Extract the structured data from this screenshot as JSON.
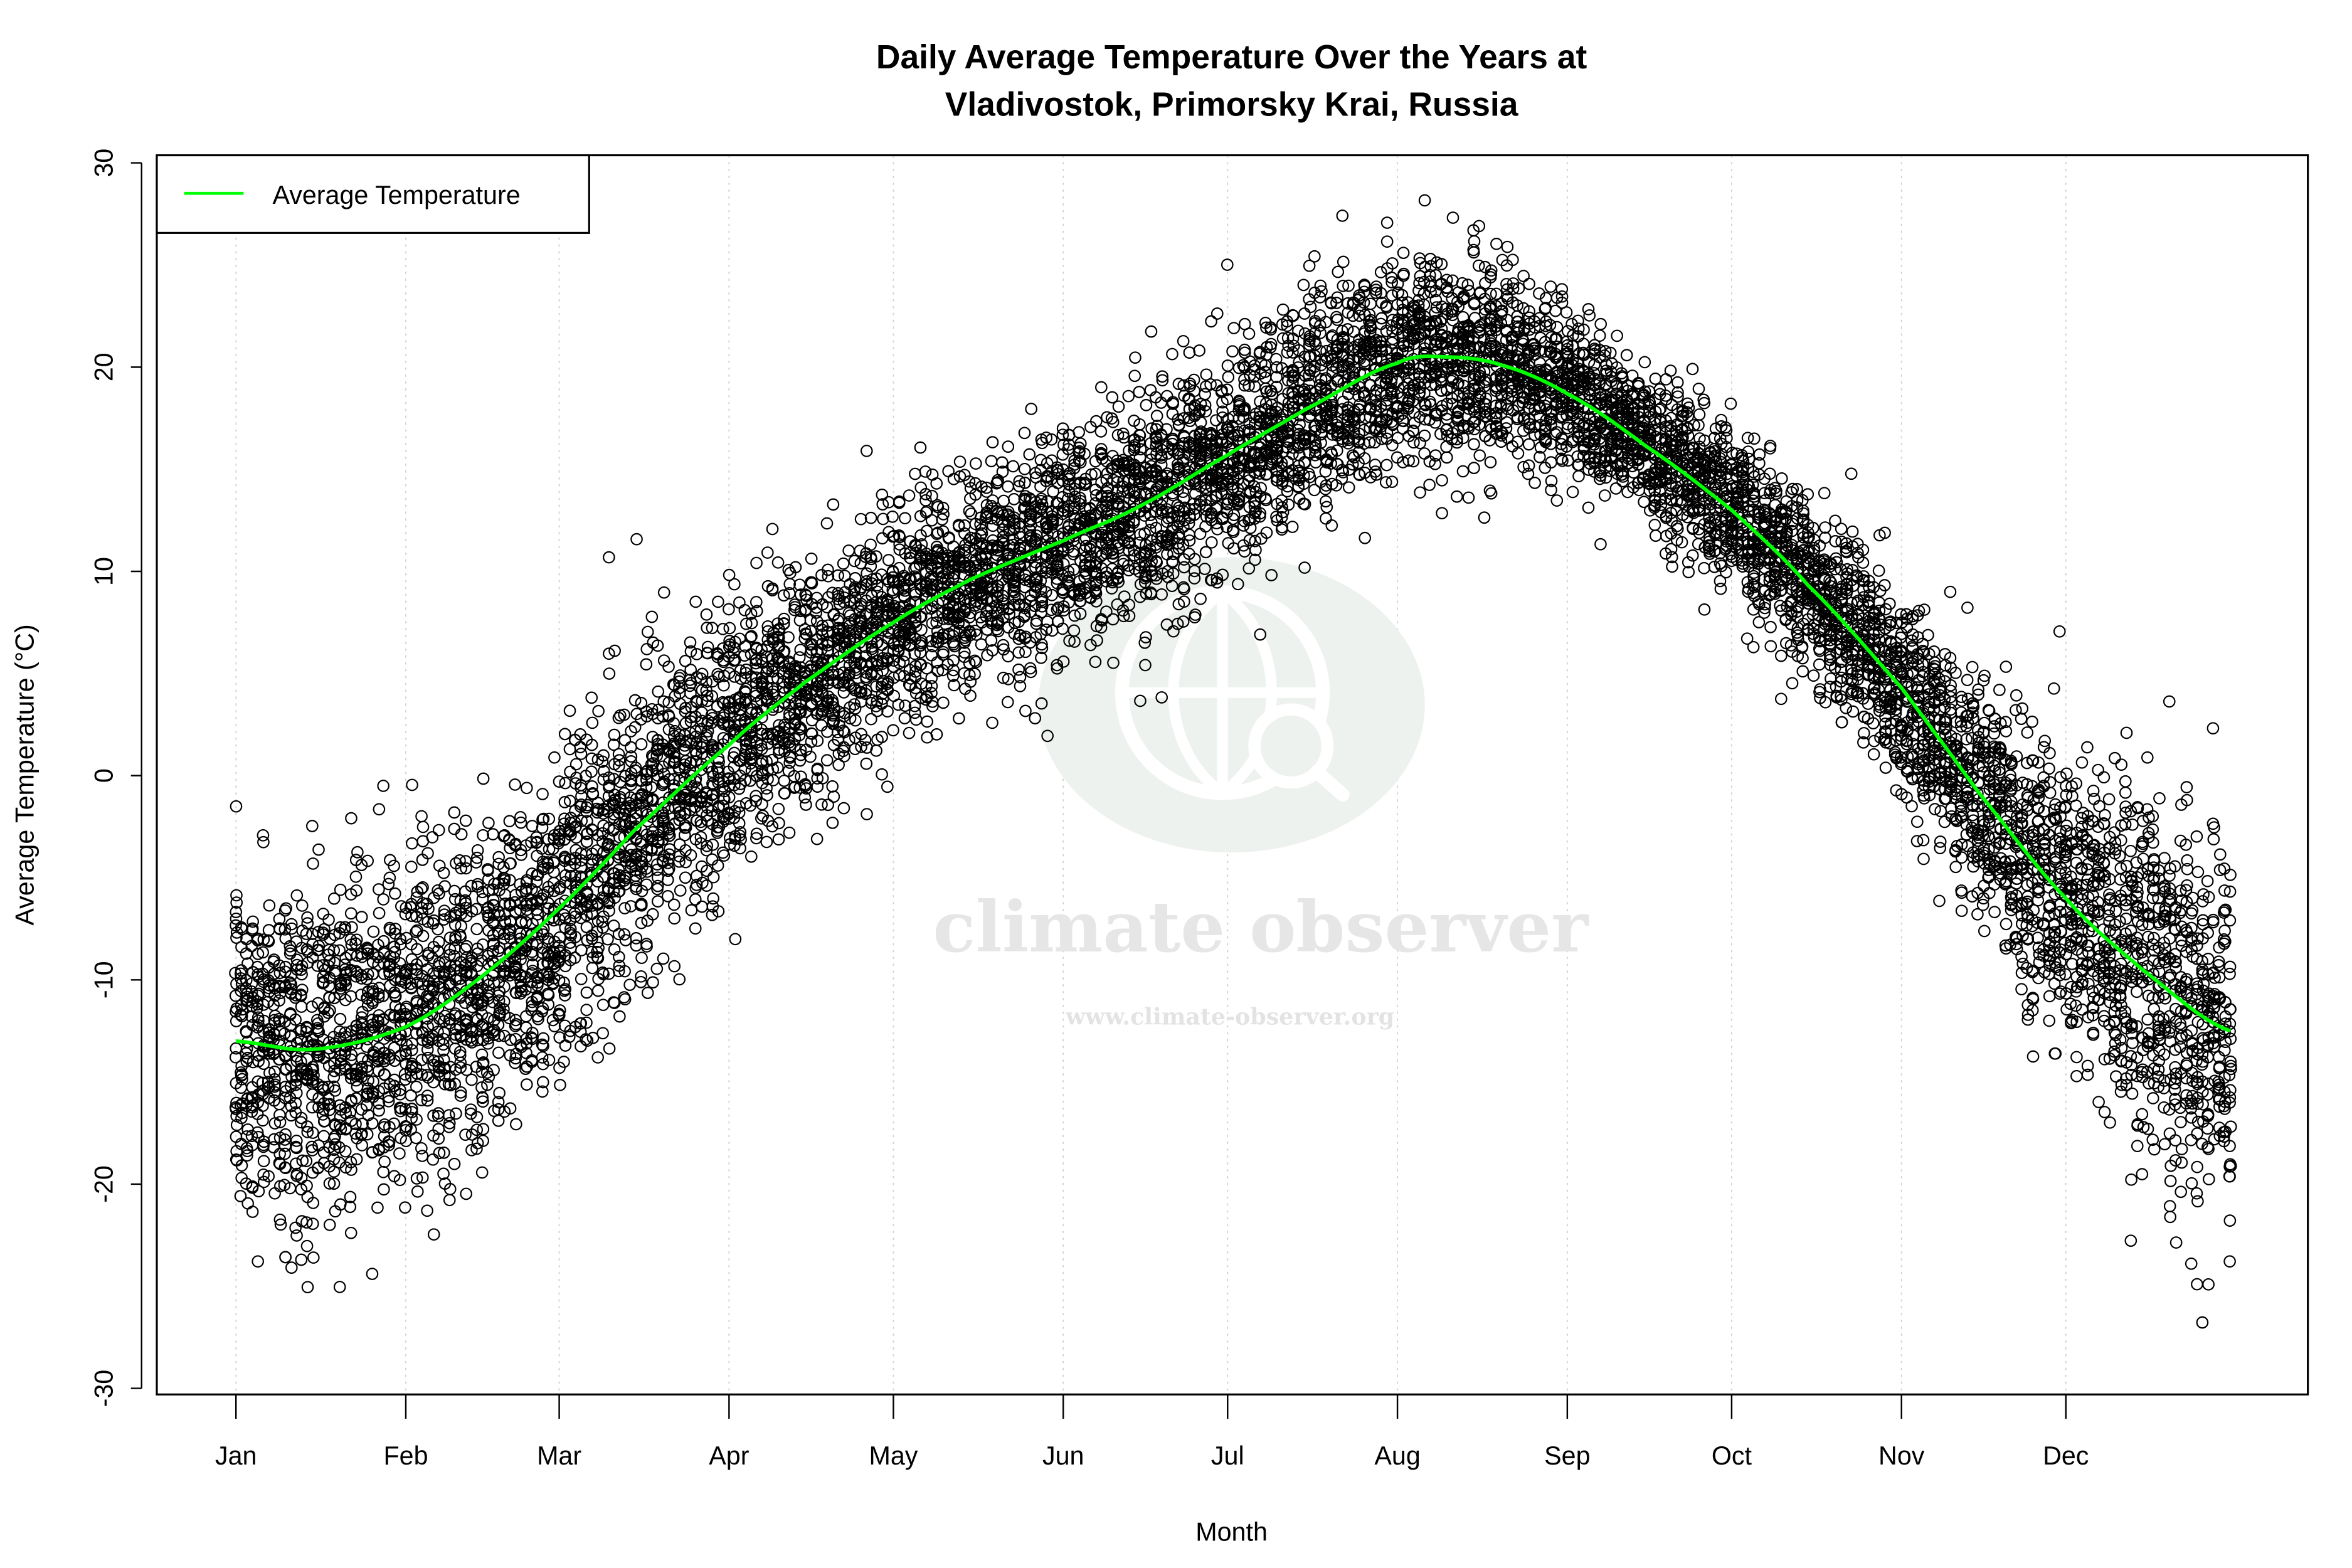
{
  "chart_data": {
    "type": "scatter",
    "title": "Daily Average Temperature Over the Years at\nVladivostok, Primorsky Krai, Russia",
    "title_lines": [
      "Daily Average Temperature Over the Years at",
      "Vladivostok, Primorsky Krai, Russia"
    ],
    "xlabel": "Month",
    "ylabel": "Average Temperature (°C)",
    "x_tick_labels": [
      "Jan",
      "Feb",
      "Mar",
      "Apr",
      "May",
      "Jun",
      "Jul",
      "Aug",
      "Sep",
      "Oct",
      "Nov",
      "Dec"
    ],
    "x_tick_dates": [
      "01-01",
      "02-01",
      "03-01",
      "04-01",
      "05-01",
      "06-01",
      "07-01",
      "08-01",
      "09-01",
      "10-01",
      "11-01",
      "12-01"
    ],
    "y_ticks": [
      -30,
      -20,
      -10,
      0,
      10,
      20,
      30
    ],
    "ylim": [
      -30,
      30
    ],
    "grid": "vertical dotted at month ticks",
    "legend": {
      "position": "top-left",
      "entries": [
        {
          "label": "Average Temperature",
          "color": "#00ff00"
        }
      ]
    },
    "series": [
      {
        "name": "Average Temperature",
        "type": "line",
        "color": "#00ff00",
        "points": [
          {
            "date": "01-01",
            "value": -13.0
          },
          {
            "date": "01-15",
            "value": -13.4
          },
          {
            "date": "02-01",
            "value": -12.3
          },
          {
            "date": "02-15",
            "value": -9.8
          },
          {
            "date": "03-01",
            "value": -6.5
          },
          {
            "date": "03-15",
            "value": -2.6
          },
          {
            "date": "04-01",
            "value": 1.5
          },
          {
            "date": "04-15",
            "value": 4.6
          },
          {
            "date": "05-01",
            "value": 7.5
          },
          {
            "date": "05-15",
            "value": 9.6
          },
          {
            "date": "06-01",
            "value": 11.5
          },
          {
            "date": "06-15",
            "value": 13.2
          },
          {
            "date": "07-01",
            "value": 15.7
          },
          {
            "date": "07-15",
            "value": 17.9
          },
          {
            "date": "08-01",
            "value": 20.2
          },
          {
            "date": "08-10",
            "value": 20.5
          },
          {
            "date": "08-20",
            "value": 20.1
          },
          {
            "date": "09-01",
            "value": 18.7
          },
          {
            "date": "09-15",
            "value": 16.2
          },
          {
            "date": "10-01",
            "value": 13.0
          },
          {
            "date": "10-15",
            "value": 9.3
          },
          {
            "date": "11-01",
            "value": 4.3
          },
          {
            "date": "11-15",
            "value": -0.8
          },
          {
            "date": "12-01",
            "value": -6.0
          },
          {
            "date": "12-15",
            "value": -9.5
          },
          {
            "date": "12-31",
            "value": -12.5
          }
        ]
      },
      {
        "name": "",
        "type": "scatter",
        "marker": "open-circle",
        "color": "#000000",
        "description_of_spread_by_month": [
          {
            "month": "Jan",
            "min": -28,
            "max": 1
          },
          {
            "month": "Feb",
            "min": -25.5,
            "max": 2
          },
          {
            "month": "Mar",
            "min": -21,
            "max": 5
          },
          {
            "month": "Apr",
            "min": -10,
            "max": 11
          },
          {
            "month": "May",
            "min": 0,
            "max": 18
          },
          {
            "month": "Jun",
            "min": 4,
            "max": 24
          },
          {
            "month": "Jul",
            "min": 9,
            "max": 27.5
          },
          {
            "month": "Aug",
            "min": 11,
            "max": 28
          },
          {
            "month": "Sep",
            "min": 12,
            "max": 25
          },
          {
            "month": "Oct",
            "min": 4,
            "max": 18.5
          },
          {
            "month": "Nov",
            "min": -6,
            "max": 13
          },
          {
            "month": "Dec",
            "min": -23,
            "max": 9
          }
        ]
      }
    ]
  },
  "watermark": {
    "name": "climate observer",
    "url": "www.climate-observer.org"
  }
}
